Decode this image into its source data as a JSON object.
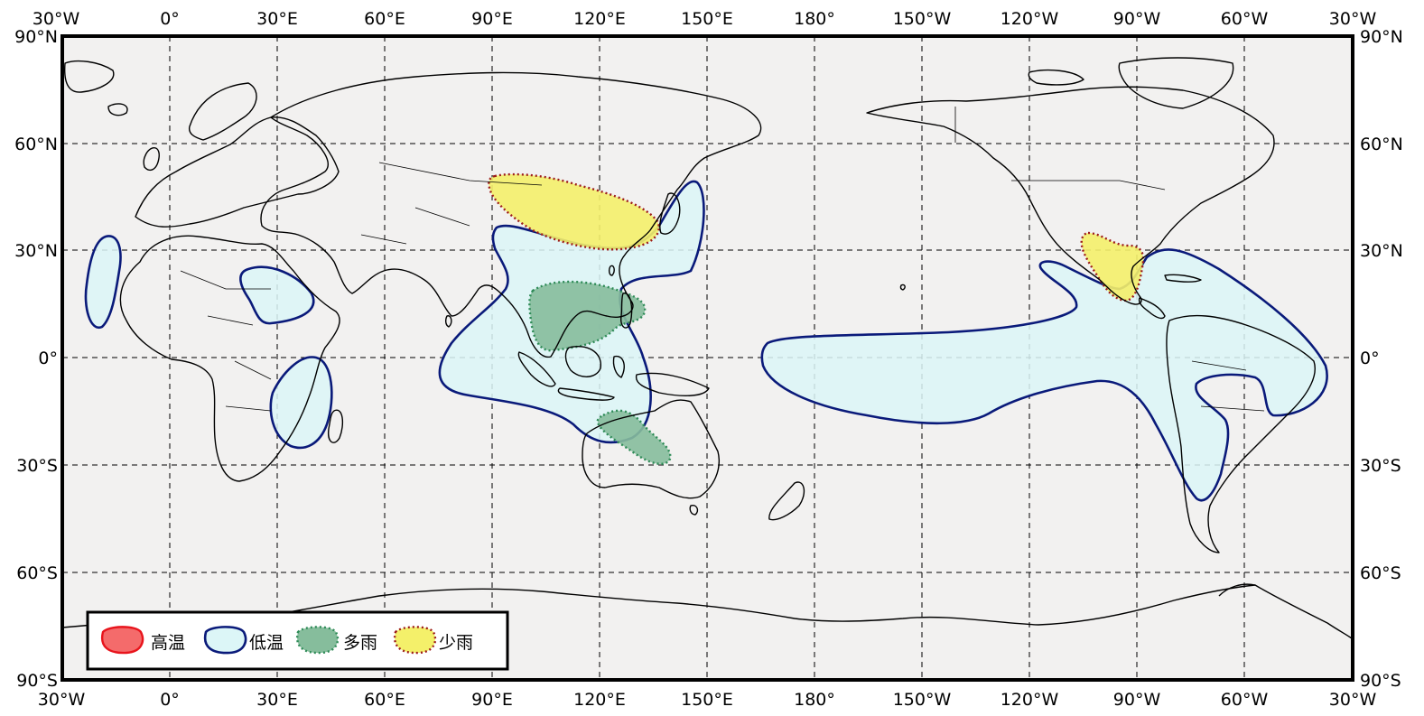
{
  "map": {
    "projection": "equirectangular",
    "lon_range": "30°W to 30°W (centered 180°)",
    "lat_range": "90°S to 90°N",
    "background": "#f2f1f0",
    "grid": "dashed, every 30°",
    "lon_labels": [
      "30°W",
      "0°",
      "30°E",
      "60°E",
      "90°E",
      "120°E",
      "150°E",
      "180°",
      "150°W",
      "120°W",
      "90°W",
      "60°W",
      "30°W"
    ],
    "lat_labels": [
      "90°N",
      "60°N",
      "30°N",
      "0°",
      "30°S",
      "60°S",
      "90°S"
    ]
  },
  "legend": {
    "position": "bottom-left",
    "items": [
      {
        "label": "高温",
        "fill": "#f46b6b",
        "stroke": "#e8141c",
        "style": "solid"
      },
      {
        "label": "低温",
        "fill": "#dcf6f7",
        "stroke": "#0a1a7a",
        "style": "solid"
      },
      {
        "label": "多雨",
        "fill": "#86bd9c",
        "stroke": "#2e8b57",
        "style": "dotted"
      },
      {
        "label": "少雨",
        "fill": "#f4f06a",
        "stroke": "#9c1b1b",
        "style": "dotted"
      }
    ]
  },
  "regions": [
    {
      "category": "低温",
      "area": "West Africa coast (Morocco–Senegal)"
    },
    {
      "category": "低温",
      "area": "Sahel / Sudan – Red Sea"
    },
    {
      "category": "低温",
      "area": "East Africa – Mozambique"
    },
    {
      "category": "低温",
      "area": "East Asia – Southeast Asia – Indonesia – northern Australia"
    },
    {
      "category": "低温",
      "area": "Equatorial Pacific – Central & South America"
    },
    {
      "category": "多雨",
      "area": "Indochina – Philippines"
    },
    {
      "category": "多雨",
      "area": "North-western Australia"
    },
    {
      "category": "少雨",
      "area": "Mongolia – northern China – Korea"
    },
    {
      "category": "少雨",
      "area": "Mexico"
    }
  ]
}
